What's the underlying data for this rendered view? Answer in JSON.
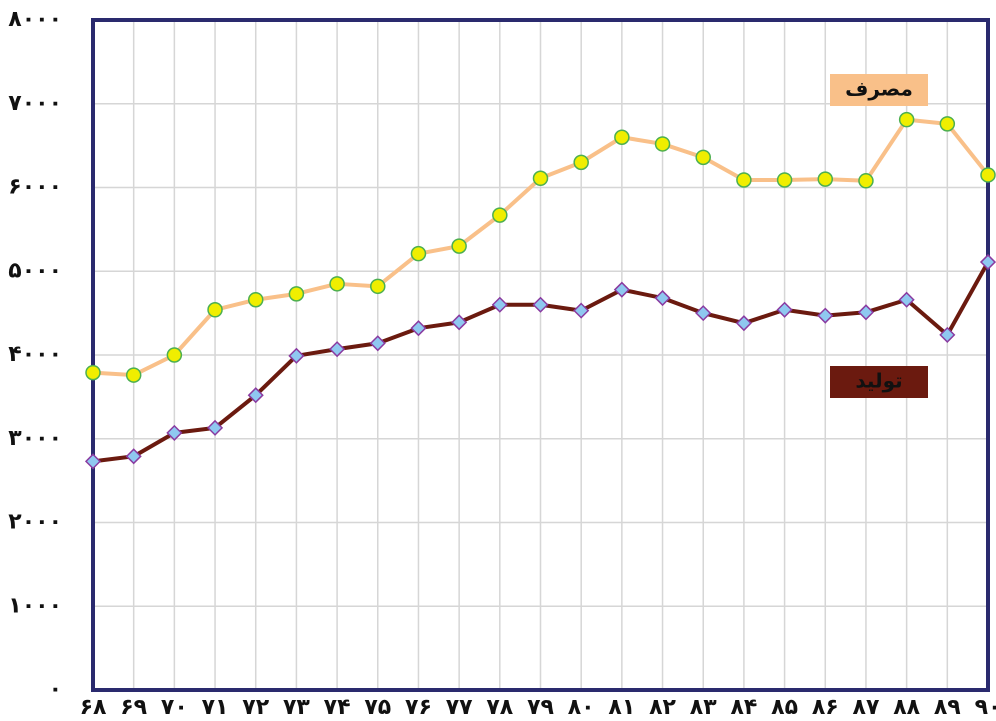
{
  "chart_data": {
    "type": "line",
    "categories": [
      "۶۸",
      "۶۹",
      "۷۰",
      "۷۱",
      "۷۲",
      "۷۳",
      "۷۴",
      "۷۵",
      "۷۶",
      "۷۷",
      "۷۸",
      "۷۹",
      "۸۰",
      "۸۱",
      "۸۲",
      "۸۳",
      "۸۴",
      "۸۵",
      "۸۶",
      "۸۷",
      "۸۸",
      "۸۹",
      "۹۰"
    ],
    "series": [
      {
        "name": "مصرف",
        "color": "#f9c089",
        "marker_color": "#f0ee00",
        "marker_stroke": "#4caf50",
        "marker": "circle",
        "values": [
          3790,
          3760,
          4000,
          4540,
          4660,
          4730,
          4850,
          4820,
          5210,
          5300,
          5670,
          6110,
          6300,
          6600,
          6520,
          6360,
          6090,
          6090,
          6100,
          6080,
          6810,
          6760,
          6150
        ]
      },
      {
        "name": "تولید",
        "color": "#6b1a0f",
        "marker_color": "#8fc8f0",
        "marker_stroke": "#8a3aa0",
        "marker": "diamond",
        "values": [
          2730,
          2790,
          3070,
          3130,
          3520,
          3990,
          4070,
          4140,
          4320,
          4390,
          4600,
          4600,
          4530,
          4780,
          4680,
          4500,
          4380,
          4540,
          4470,
          4510,
          4660,
          4240,
          5110
        ]
      }
    ],
    "ylim": [
      0,
      8000
    ],
    "yticks": [
      {
        "value": 0,
        "label": "۰"
      },
      {
        "value": 1000,
        "label": "۱۰۰۰"
      },
      {
        "value": 2000,
        "label": "۲۰۰۰"
      },
      {
        "value": 3000,
        "label": "۳۰۰۰"
      },
      {
        "value": 4000,
        "label": "۴۰۰۰"
      },
      {
        "value": 5000,
        "label": "۵۰۰۰"
      },
      {
        "value": 6000,
        "label": "۶۰۰۰"
      },
      {
        "value": 7000,
        "label": "۷۰۰۰"
      },
      {
        "value": 8000,
        "label": "۸۰۰۰"
      }
    ],
    "grid": true
  }
}
